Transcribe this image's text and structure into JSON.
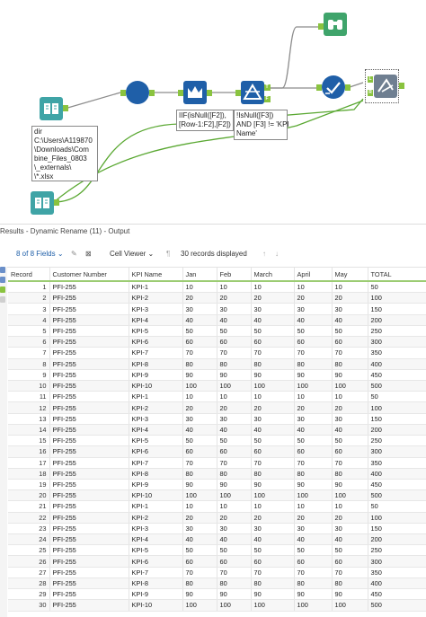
{
  "workflow": {
    "annotations": {
      "input_path": "dir\nC:\\Users\\A119870\n\\Downloads\\Com\nbine_Files_0803\n\\_externals\\\n\\*.xlsx",
      "formula_one": "IIF(isNull([F2]),\n[Row-1:F2],[F2])",
      "filter_expr": "!IsNull([F3])\nAND [F3] != 'KPI\nName'"
    },
    "anchors": {
      "true": "T",
      "false": "F",
      "left": "L",
      "right": "R"
    },
    "colors": {
      "input": "#3fa4a6",
      "select": "#1f5fa8",
      "multirow": "#1f5fa8",
      "filter": "#1f5fa8",
      "browse": "#3fa46b",
      "check": "#1f5fa8",
      "rename": "#6f7f91",
      "connector": "#8c8c8c",
      "green_line": "#5aa832"
    }
  },
  "results": {
    "title": "Results - Dynamic Rename (11) - Output",
    "fields_label": "8 of 8 Fields",
    "cell_viewer_label": "Cell Viewer",
    "records_label": "30 records displayed",
    "columns": [
      "Record",
      "Customer Number",
      "KPI Name",
      "Jan",
      "Feb",
      "March",
      "April",
      "May",
      "TOTAL"
    ],
    "rows": [
      [
        "1",
        "PFI-255",
        "KPI-1",
        "10",
        "10",
        "10",
        "10",
        "10",
        "50"
      ],
      [
        "2",
        "PFI-255",
        "KPI-2",
        "20",
        "20",
        "20",
        "20",
        "20",
        "100"
      ],
      [
        "3",
        "PFI-255",
        "KPI-3",
        "30",
        "30",
        "30",
        "30",
        "30",
        "150"
      ],
      [
        "4",
        "PFI-255",
        "KPI-4",
        "40",
        "40",
        "40",
        "40",
        "40",
        "200"
      ],
      [
        "5",
        "PFI-255",
        "KPI-5",
        "50",
        "50",
        "50",
        "50",
        "50",
        "250"
      ],
      [
        "6",
        "PFI-255",
        "KPI-6",
        "60",
        "60",
        "60",
        "60",
        "60",
        "300"
      ],
      [
        "7",
        "PFI-255",
        "KPI-7",
        "70",
        "70",
        "70",
        "70",
        "70",
        "350"
      ],
      [
        "8",
        "PFI-255",
        "KPI-8",
        "80",
        "80",
        "80",
        "80",
        "80",
        "400"
      ],
      [
        "9",
        "PFI-255",
        "KPI-9",
        "90",
        "90",
        "90",
        "90",
        "90",
        "450"
      ],
      [
        "10",
        "PFI-255",
        "KPI-10",
        "100",
        "100",
        "100",
        "100",
        "100",
        "500"
      ],
      [
        "11",
        "PFI-255",
        "KPI-1",
        "10",
        "10",
        "10",
        "10",
        "10",
        "50"
      ],
      [
        "12",
        "PFI-255",
        "KPI-2",
        "20",
        "20",
        "20",
        "20",
        "20",
        "100"
      ],
      [
        "13",
        "PFI-255",
        "KPI-3",
        "30",
        "30",
        "30",
        "30",
        "30",
        "150"
      ],
      [
        "14",
        "PFI-255",
        "KPI-4",
        "40",
        "40",
        "40",
        "40",
        "40",
        "200"
      ],
      [
        "15",
        "PFI-255",
        "KPI-5",
        "50",
        "50",
        "50",
        "50",
        "50",
        "250"
      ],
      [
        "16",
        "PFI-255",
        "KPI-6",
        "60",
        "60",
        "60",
        "60",
        "60",
        "300"
      ],
      [
        "17",
        "PFI-255",
        "KPI-7",
        "70",
        "70",
        "70",
        "70",
        "70",
        "350"
      ],
      [
        "18",
        "PFI-255",
        "KPI-8",
        "80",
        "80",
        "80",
        "80",
        "80",
        "400"
      ],
      [
        "19",
        "PFI-255",
        "KPI-9",
        "90",
        "90",
        "90",
        "90",
        "90",
        "450"
      ],
      [
        "20",
        "PFI-255",
        "KPI-10",
        "100",
        "100",
        "100",
        "100",
        "100",
        "500"
      ],
      [
        "21",
        "PFI-255",
        "KPI-1",
        "10",
        "10",
        "10",
        "10",
        "10",
        "50"
      ],
      [
        "22",
        "PFI-255",
        "KPI-2",
        "20",
        "20",
        "20",
        "20",
        "20",
        "100"
      ],
      [
        "23",
        "PFI-255",
        "KPI-3",
        "30",
        "30",
        "30",
        "30",
        "30",
        "150"
      ],
      [
        "24",
        "PFI-255",
        "KPI-4",
        "40",
        "40",
        "40",
        "40",
        "40",
        "200"
      ],
      [
        "25",
        "PFI-255",
        "KPI-5",
        "50",
        "50",
        "50",
        "50",
        "50",
        "250"
      ],
      [
        "26",
        "PFI-255",
        "KPI-6",
        "60",
        "60",
        "60",
        "60",
        "60",
        "300"
      ],
      [
        "27",
        "PFI-255",
        "KPI-7",
        "70",
        "70",
        "70",
        "70",
        "70",
        "350"
      ],
      [
        "28",
        "PFI-255",
        "KPI-8",
        "80",
        "80",
        "80",
        "80",
        "80",
        "400"
      ],
      [
        "29",
        "PFI-255",
        "KPI-9",
        "90",
        "90",
        "90",
        "90",
        "90",
        "450"
      ],
      [
        "30",
        "PFI-255",
        "KPI-10",
        "100",
        "100",
        "100",
        "100",
        "100",
        "500"
      ]
    ]
  }
}
